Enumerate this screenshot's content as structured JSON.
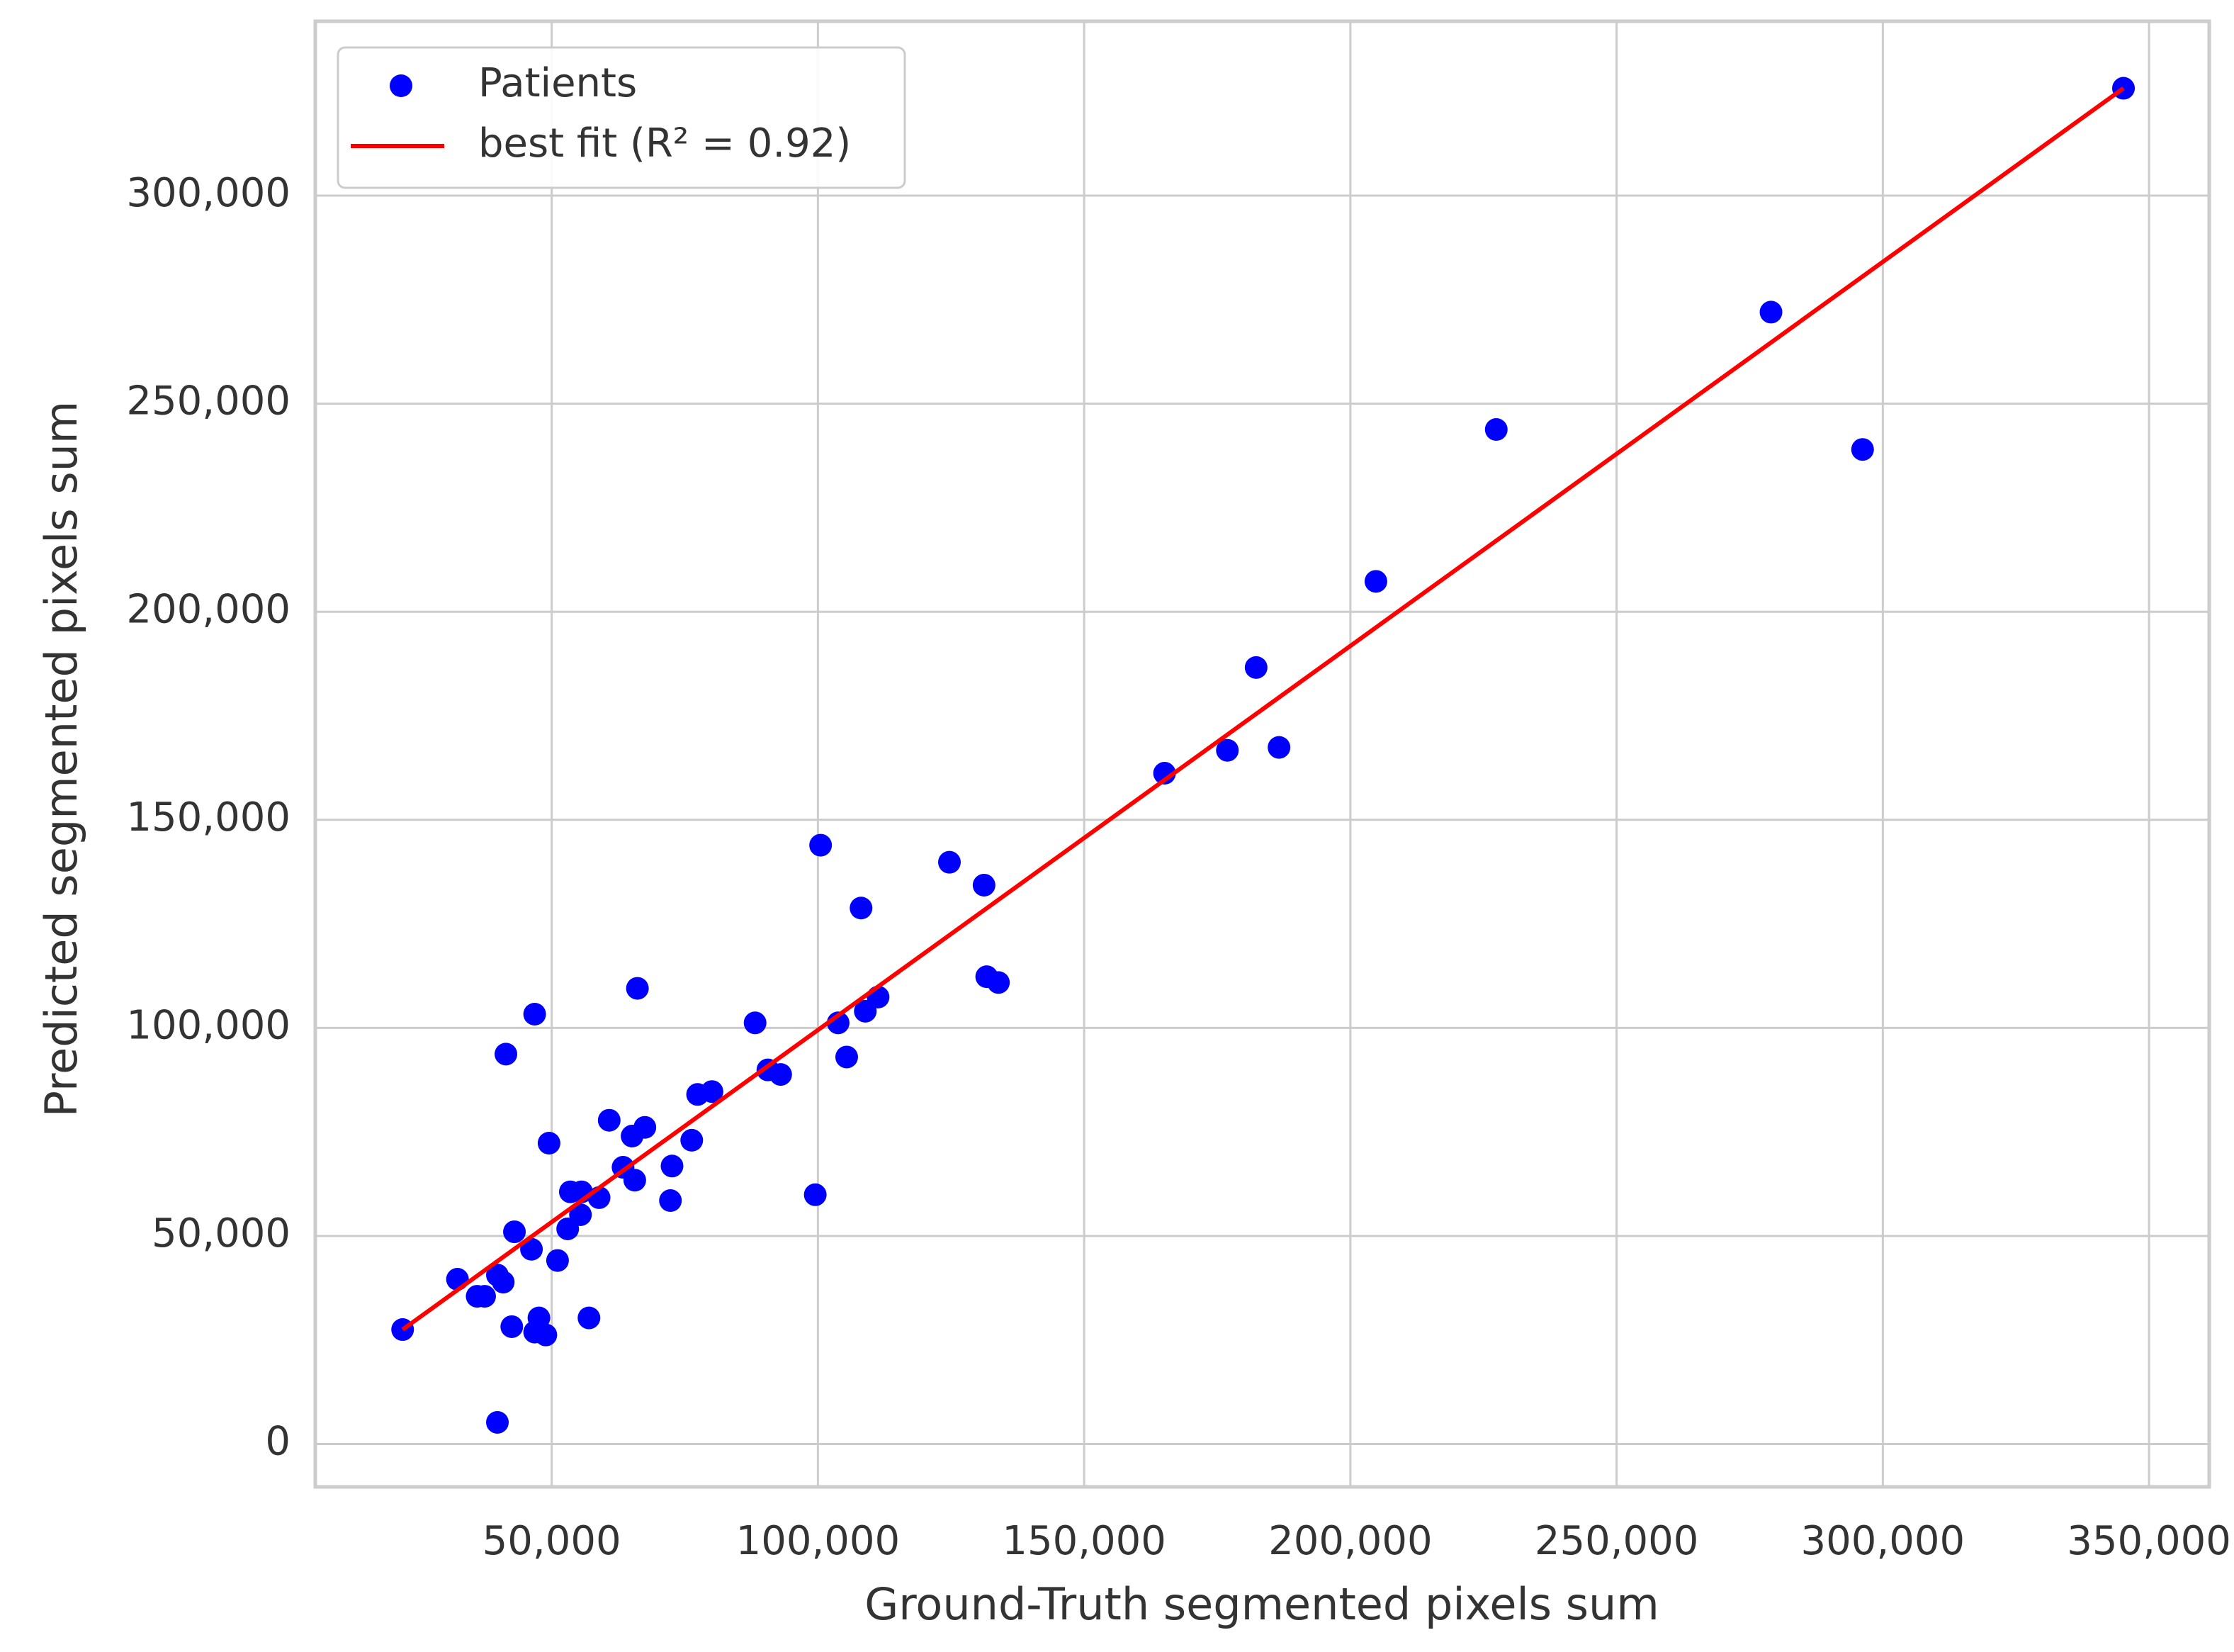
{
  "chart_data": {
    "type": "scatter",
    "xlabel": "Ground-Truth segmented pixels sum",
    "ylabel": "Predicted segmented pixels sum",
    "xlim": [
      5600,
      361300
    ],
    "ylim": [
      -10300,
      341900
    ],
    "xticks": [
      {
        "value": 50000,
        "label": "50,000"
      },
      {
        "value": 100000,
        "label": "100,000"
      },
      {
        "value": 150000,
        "label": "150,000"
      },
      {
        "value": 200000,
        "label": "200,000"
      },
      {
        "value": 250000,
        "label": "250,000"
      },
      {
        "value": 300000,
        "label": "300,000"
      },
      {
        "value": 350000,
        "label": "350,000"
      }
    ],
    "yticks": [
      0,
      {
        "value": 50000,
        "label": "50,000"
      },
      {
        "value": 100000,
        "label": "100,000"
      },
      {
        "value": 150000,
        "label": "150,000"
      },
      {
        "value": 200000,
        "label": "200,000"
      },
      {
        "value": 250000,
        "label": "250,000"
      },
      {
        "value": 300000,
        "label": "300,000"
      }
    ],
    "grid": true,
    "legend": "upper left",
    "series": [
      {
        "name": "Patients",
        "type": "scatter",
        "color": "#0000ff",
        "x": [
          22000,
          32300,
          36000,
          37400,
          39800,
          39800,
          40900,
          41400,
          42500,
          43000,
          46200,
          46800,
          46800,
          47600,
          48900,
          49500,
          51100,
          53000,
          53500,
          55400,
          55600,
          57000,
          58900,
          60800,
          63400,
          65100,
          65600,
          66100,
          67500,
          72300,
          72600,
          76300,
          77400,
          80100,
          88200,
          90600,
          93000,
          99500,
          100500,
          103800,
          105400,
          108100,
          108900,
          111300,
          124700,
          131200,
          131700,
          133900,
          165100,
          176900,
          182300,
          186600,
          204800,
          227400,
          279000,
          296200,
          345200
        ],
        "y": [
          27500,
          39600,
          35500,
          35500,
          5200,
          40600,
          38900,
          93700,
          28200,
          51000,
          46800,
          103300,
          26900,
          30300,
          26200,
          72300,
          44100,
          51700,
          60600,
          55100,
          60600,
          30300,
          59200,
          77800,
          66500,
          74000,
          63400,
          109500,
          76100,
          58500,
          66800,
          73000,
          84000,
          84700,
          101200,
          89900,
          88800,
          59900,
          143900,
          101200,
          93000,
          128800,
          104000,
          107400,
          139800,
          134300,
          112300,
          110900,
          161200,
          166700,
          186600,
          167400,
          207300,
          243800,
          272000,
          239000,
          325800
        ]
      },
      {
        "name": "best fit (R² = 0.92)",
        "type": "line",
        "color": "#ff0000",
        "x": [
          22000,
          345200
        ],
        "y": [
          27500,
          325800
        ]
      }
    ]
  }
}
